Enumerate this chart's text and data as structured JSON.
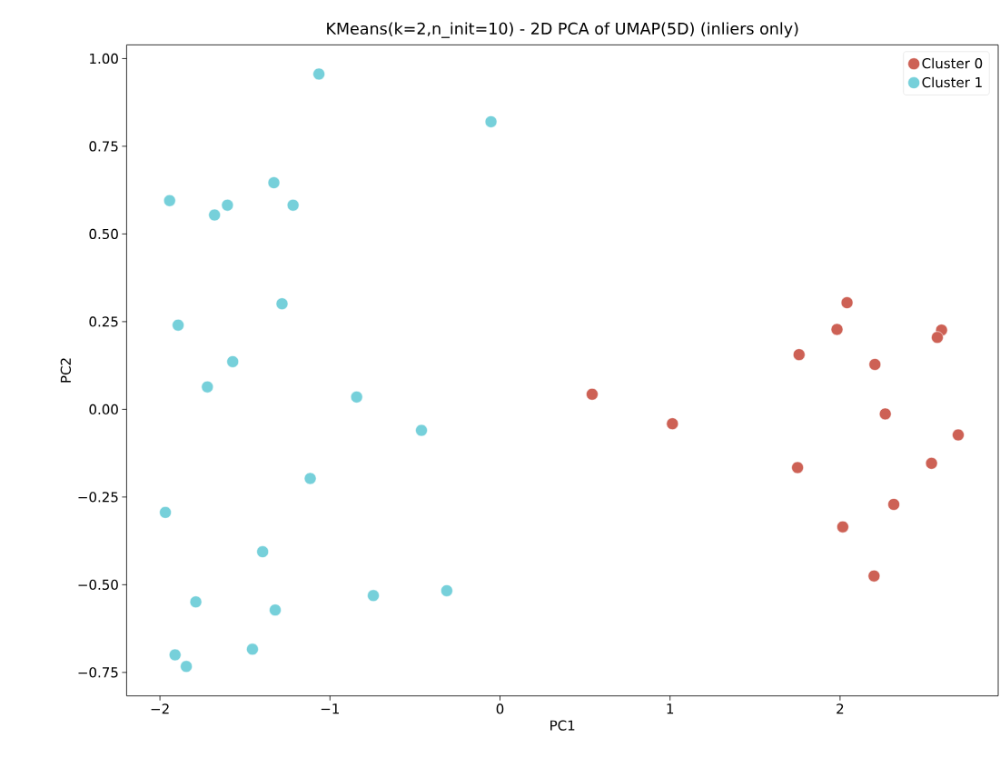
{
  "chart_data": {
    "type": "scatter",
    "title": "KMeans(k=2,n_init=10) - 2D PCA of UMAP(5D) (inliers only)",
    "xlabel": "PC1",
    "ylabel": "PC2",
    "xlim": [
      -2.196,
      2.93
    ],
    "ylim": [
      -0.817,
      1.039
    ],
    "xticks": [
      {
        "value": -2,
        "label": "−2"
      },
      {
        "value": -1,
        "label": "−1"
      },
      0,
      1,
      2
    ],
    "yticks": [
      {
        "value": -0.75,
        "label": "−0.75"
      },
      {
        "value": -0.5,
        "label": "−0.50"
      },
      {
        "value": -0.25,
        "label": "−0.25"
      },
      {
        "value": 0,
        "label": "0.00"
      },
      {
        "value": 0.25,
        "label": "0.25"
      },
      {
        "value": 0.5,
        "label": "0.50"
      },
      {
        "value": 0.75,
        "label": "0.75"
      },
      {
        "value": 1,
        "label": "1.00"
      }
    ],
    "grid": false,
    "legend": "top right",
    "series": [
      {
        "name": "Cluster 0",
        "color": "#cd6155",
        "x": [
          0.542,
          1.014,
          2.041,
          1.982,
          1.759,
          2.205,
          2.597,
          2.572,
          2.266,
          2.695,
          1.75,
          2.538,
          2.316,
          2.016,
          2.2
        ],
        "values": [
          0.043,
          -0.041,
          0.304,
          0.228,
          0.156,
          0.128,
          0.226,
          0.205,
          -0.013,
          -0.073,
          -0.166,
          -0.154,
          -0.271,
          -0.335,
          -0.475
        ]
      },
      {
        "name": "Cluster 1",
        "color": "#76d0da",
        "x": [
          -1.065,
          -0.053,
          -1.943,
          -1.33,
          -1.603,
          -1.679,
          -1.217,
          -1.282,
          -1.893,
          -1.572,
          -1.721,
          -0.843,
          -0.462,
          -1.116,
          -1.968,
          -1.396,
          -1.789,
          -1.322,
          -0.745,
          -0.313,
          -1.456,
          -1.911,
          -1.845
        ],
        "values": [
          0.956,
          0.82,
          0.595,
          0.646,
          0.582,
          0.554,
          0.582,
          0.301,
          0.24,
          0.136,
          0.064,
          0.035,
          -0.06,
          -0.197,
          -0.294,
          -0.406,
          -0.549,
          -0.572,
          -0.531,
          -0.517,
          -0.684,
          -0.7,
          -0.733
        ]
      }
    ]
  }
}
